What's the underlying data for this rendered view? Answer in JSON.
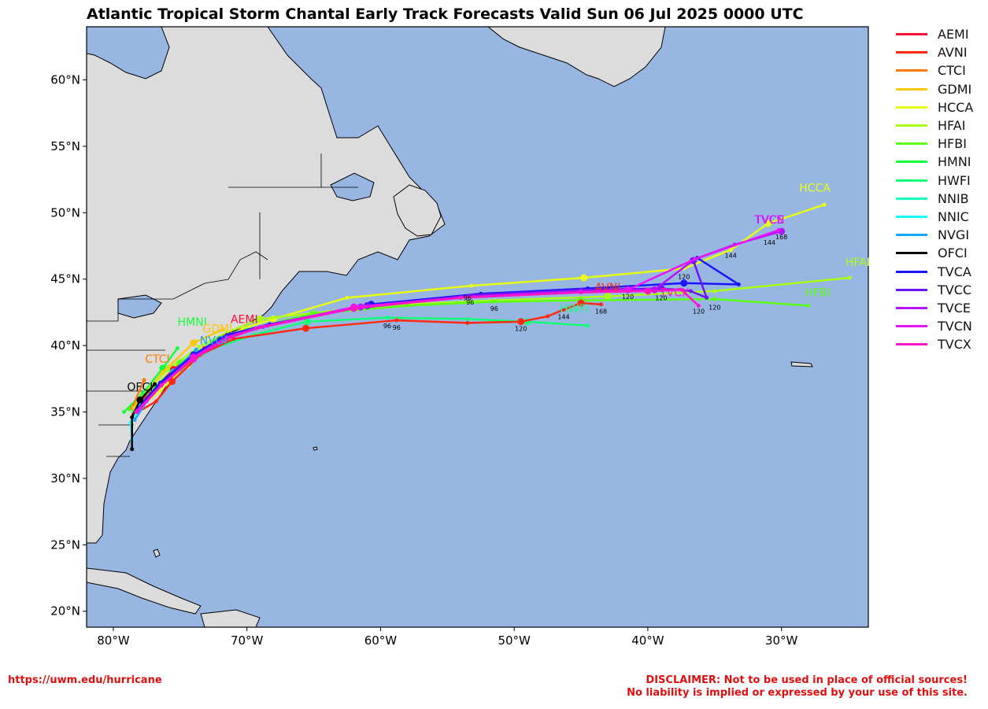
{
  "title": "Atlantic Tropical Storm Chantal Early Track Forecasts Valid Sun 06 Jul 2025 0000 UTC",
  "map": {
    "projection": "equirectangular",
    "lon_range": [
      -82,
      -23.5
    ],
    "lat_range": [
      18.8,
      64
    ],
    "ocean_color": "#98b6e2",
    "land_color": "#dcdcdc",
    "lat_ticks": [
      "60°N",
      "55°N",
      "50°N",
      "45°N",
      "40°N",
      "35°N",
      "30°N",
      "25°N",
      "20°N"
    ],
    "lat_values": [
      60,
      55,
      50,
      45,
      40,
      35,
      30,
      25,
      20
    ],
    "lon_ticks": [
      "80°W",
      "70°W",
      "60°W",
      "50°W",
      "40°W",
      "30°W"
    ],
    "lon_values": [
      -80,
      -70,
      -60,
      -50,
      -40,
      -30
    ]
  },
  "legend": [
    {
      "id": "AEMI",
      "color": "#ff0d35"
    },
    {
      "id": "AVNI",
      "color": "#ff2a10"
    },
    {
      "id": "CTCI",
      "color": "#ff7a0a"
    },
    {
      "id": "GDMI",
      "color": "#ffc70a"
    },
    {
      "id": "HCCA",
      "color": "#e8ff14"
    },
    {
      "id": "HFAI",
      "color": "#a8ff14"
    },
    {
      "id": "HFBI",
      "color": "#5cff14"
    },
    {
      "id": "HMNI",
      "color": "#14ff3c"
    },
    {
      "id": "HWFI",
      "color": "#14ff78"
    },
    {
      "id": "NNIB",
      "color": "#14ffc0"
    },
    {
      "id": "NNIC",
      "color": "#14ffff"
    },
    {
      "id": "NVGI",
      "color": "#14aaff"
    },
    {
      "id": "OFCI",
      "color": "#000000"
    },
    {
      "id": "TVCA",
      "color": "#1a14ff"
    },
    {
      "id": "TVCC",
      "color": "#6a14ff"
    },
    {
      "id": "TVCE",
      "color": "#b414ff"
    },
    {
      "id": "TVCN",
      "color": "#e614ff"
    },
    {
      "id": "TVCX",
      "color": "#ff14c8"
    }
  ],
  "tracks": [
    {
      "id": "HCCA",
      "color": "#e8ff14",
      "label": "HCCA",
      "label_pos": [
        -27.5,
        51.6
      ],
      "points": [
        [
          -78.4,
          35.0
        ],
        [
          -76.5,
          36.6
        ],
        [
          -74.5,
          38.5
        ],
        [
          -72.5,
          40.0
        ],
        [
          -70.3,
          41.3
        ],
        [
          -68,
          42.0
        ],
        [
          -62.5,
          43.6
        ],
        [
          -53.2,
          44.5
        ],
        [
          -44.8,
          45.1
        ],
        [
          -37.3,
          45.8
        ],
        [
          -33.8,
          47.2
        ],
        [
          -31,
          49.2
        ],
        [
          -26.8,
          50.6
        ]
      ],
      "hours": [
        [
          "120",
          -37.3,
          45.0
        ],
        [
          "144",
          -33.8,
          46.6
        ]
      ]
    },
    {
      "id": "HFAI",
      "color": "#a8ff14",
      "label": "HFAI",
      "label_pos": [
        -24.3,
        46.0
      ],
      "points": [
        [
          -78.8,
          35.2
        ],
        [
          -77.5,
          36.6
        ],
        [
          -75.8,
          38.3
        ],
        [
          -73.6,
          39.9
        ],
        [
          -71.5,
          41.0
        ],
        [
          -69,
          42.0
        ],
        [
          -60,
          43.0
        ],
        [
          -51.5,
          43.4
        ],
        [
          -43,
          43.7
        ],
        [
          -35,
          44.1
        ],
        [
          -24.9,
          45.1
        ]
      ],
      "hours": []
    },
    {
      "id": "HFBI",
      "color": "#5cff14",
      "label": "HFBI",
      "label_pos": [
        -27.3,
        43.7
      ],
      "points": [
        [
          -78.8,
          35.2
        ],
        [
          -77,
          36.8
        ],
        [
          -75,
          38.7
        ],
        [
          -72.5,
          40.3
        ],
        [
          -70,
          41.2
        ],
        [
          -65,
          42.4
        ],
        [
          -58,
          43.0
        ],
        [
          -51.5,
          43.3
        ],
        [
          -45,
          43.4
        ],
        [
          -35,
          43.5
        ],
        [
          -28,
          43.0
        ]
      ],
      "hours": [
        [
          "96",
          -51.5,
          42.6
        ],
        [
          "120",
          -35,
          42.7
        ]
      ]
    },
    {
      "id": "HMNI",
      "color": "#14ff3c",
      "label": "HMNI",
      "label_pos": [
        -74.1,
        41.5
      ],
      "points": [
        [
          -79.2,
          35.0
        ],
        [
          -77.8,
          36.4
        ],
        [
          -76.3,
          38.3
        ],
        [
          -75.2,
          39.8
        ]
      ],
      "hours": []
    },
    {
      "id": "HWFI",
      "color": "#14ff78",
      "label": "HWFI",
      "label_pos": [
        -45.5,
        42.5
      ],
      "points": [
        [
          -78.5,
          35.0
        ],
        [
          -77,
          36.5
        ],
        [
          -75,
          38.3
        ],
        [
          -72.5,
          39.8
        ],
        [
          -69.5,
          40.8
        ],
        [
          -65.5,
          41.8
        ],
        [
          -59.5,
          42.1
        ],
        [
          -53.5,
          42.0
        ],
        [
          -49,
          41.8
        ],
        [
          -44.5,
          41.5
        ]
      ],
      "hours": [
        [
          "96",
          -59.5,
          41.3
        ]
      ]
    },
    {
      "id": "AVNI",
      "color": "#ff2a10",
      "label": "AVNI",
      "label_pos": [
        -43,
        44.1
      ],
      "points": [
        [
          -78.5,
          34.8
        ],
        [
          -76.8,
          35.8
        ],
        [
          -75.6,
          37.3
        ],
        [
          -73.5,
          39.3
        ],
        [
          -71,
          40.5
        ],
        [
          -65.6,
          41.3
        ],
        [
          -58.8,
          41.9
        ],
        [
          -53.5,
          41.7
        ],
        [
          -49.5,
          41.8
        ],
        [
          -47.5,
          42.2
        ],
        [
          -46.3,
          42.7
        ],
        [
          -45,
          43.2
        ],
        [
          -43.5,
          43.1
        ]
      ],
      "hours": [
        [
          "96",
          -58.8,
          41.2
        ],
        [
          "120",
          -49.5,
          41.1
        ],
        [
          "144",
          -46.3,
          42.0
        ],
        [
          "168",
          -43.5,
          42.4
        ]
      ]
    },
    {
      "id": "AEMI",
      "color": "#ff0d35",
      "label": "AEMI",
      "label_pos": [
        -70.2,
        41.7
      ],
      "points": [
        [
          -78.6,
          35.3
        ],
        [
          -77.2,
          36.4
        ],
        [
          -75.5,
          38.2
        ],
        [
          -73.2,
          39.8
        ],
        [
          -71,
          40.8
        ]
      ],
      "hours": []
    },
    {
      "id": "CTCI",
      "color": "#ff7a0a",
      "label": "CTCI",
      "label_pos": [
        -76.7,
        38.7
      ],
      "points": [
        [
          -78.6,
          35.3
        ],
        [
          -77.7,
          37.4
        ]
      ],
      "hours": []
    },
    {
      "id": "GDMI",
      "color": "#ffc70a",
      "label": "GDMI",
      "label_pos": [
        -72.2,
        41.0
      ],
      "points": [
        [
          -78.5,
          35.3
        ],
        [
          -76.3,
          38.0
        ],
        [
          -74,
          40.2
        ],
        [
          -71.8,
          41.2
        ]
      ],
      "hours": []
    },
    {
      "id": "NVGI",
      "color": "#14aaff",
      "label": "NVGI",
      "label_pos": [
        -72.5,
        40.1
      ],
      "points": [
        [
          -78.4,
          34.4
        ],
        [
          -77.5,
          35.8
        ],
        [
          -75.5,
          38.0
        ],
        [
          -73.8,
          39.7
        ]
      ],
      "hours": []
    },
    {
      "id": "NNIC",
      "color": "#14ffff",
      "label": "",
      "label_pos": [
        0,
        0
      ],
      "points": [
        [
          -78.6,
          32.9
        ],
        [
          -78.7,
          34.2
        ],
        [
          -77.9,
          35.7
        ],
        [
          -77.1,
          36.3
        ]
      ],
      "hours": []
    },
    {
      "id": "OFCI",
      "color": "#000000",
      "label": "OFCI",
      "label_pos": [
        -78,
        36.6
      ],
      "points": [
        [
          -78.6,
          32.2
        ],
        [
          -78.6,
          34.6
        ],
        [
          -78,
          35.9
        ],
        [
          -76.9,
          37.1
        ]
      ],
      "hours": []
    },
    {
      "id": "TVCA",
      "color": "#1a14ff",
      "label": "",
      "label_pos": [
        0,
        0
      ],
      "points": [
        [
          -78.2,
          35.2
        ],
        [
          -76.5,
          37.2
        ],
        [
          -74,
          39.3
        ],
        [
          -71.5,
          40.8
        ],
        [
          -68.3,
          41.6
        ],
        [
          -60.7,
          43.1
        ],
        [
          -52.5,
          43.9
        ],
        [
          -44.5,
          44.3
        ],
        [
          -37.3,
          44.7
        ],
        [
          -33.2,
          44.6
        ],
        [
          -36.3,
          46.6
        ]
      ],
      "hours": [
        [
          "96",
          -53.5,
          43.4
        ]
      ]
    },
    {
      "id": "TVCC",
      "color": "#6a14ff",
      "label": "",
      "label_pos": [
        0,
        0
      ],
      "points": [
        [
          -78.2,
          35.1
        ],
        [
          -76.4,
          37.1
        ],
        [
          -74,
          39.2
        ],
        [
          -71.5,
          40.7
        ],
        [
          -68.5,
          41.5
        ],
        [
          -61,
          43.0
        ],
        [
          -53,
          43.8
        ],
        [
          -45,
          44.2
        ],
        [
          -39,
          44.3
        ],
        [
          -36.8,
          44.1
        ],
        [
          -35.6,
          43.6
        ],
        [
          -36.6,
          46.4
        ]
      ],
      "hours": [
        [
          "120",
          -39,
          43.4
        ]
      ]
    },
    {
      "id": "TVCE",
      "color": "#b414ff",
      "label": "TVCE",
      "label_pos": [
        -30.9,
        49.2
      ],
      "points": [
        [
          -78.2,
          35.1
        ],
        [
          -76.4,
          37.0
        ],
        [
          -74,
          39.1
        ],
        [
          -71.5,
          40.6
        ],
        [
          -68.8,
          41.4
        ],
        [
          -61.5,
          42.9
        ],
        [
          -53.3,
          43.7
        ],
        [
          -45,
          44.1
        ],
        [
          -39.5,
          44.2
        ],
        [
          -36.5,
          46.5
        ],
        [
          -33.5,
          47.6
        ],
        [
          -30,
          48.6
        ]
      ],
      "hours": [
        [
          "96",
          -53.3,
          43.1
        ],
        [
          "144",
          -30.9,
          47.6
        ],
        [
          "168",
          -30,
          48.0
        ]
      ]
    },
    {
      "id": "TVCN",
      "color": "#e614ff",
      "label": "TVCN",
      "label_pos": [
        -30.9,
        49.2
      ],
      "points": [
        [
          -78.2,
          35.0
        ],
        [
          -76.4,
          37.0
        ],
        [
          -74,
          39.1
        ],
        [
          -71.5,
          40.6
        ],
        [
          -69,
          41.4
        ],
        [
          -62,
          42.9
        ],
        [
          -54,
          43.6
        ],
        [
          -45,
          44.0
        ],
        [
          -41.5,
          44.2
        ],
        [
          -36.5,
          46.5
        ],
        [
          -30.2,
          48.7
        ]
      ],
      "hours": [
        [
          "120",
          -41.5,
          43.5
        ]
      ]
    },
    {
      "id": "TVCX",
      "color": "#ff14c8",
      "label": "TVCX",
      "label_pos": [
        -38,
        43.7
      ],
      "points": [
        [
          -78.3,
          35.0
        ],
        [
          -76.4,
          37.0
        ],
        [
          -74,
          39.0
        ],
        [
          -71.5,
          40.5
        ],
        [
          -69.3,
          41.3
        ],
        [
          -62,
          42.8
        ],
        [
          -54,
          43.6
        ],
        [
          -45,
          44.0
        ],
        [
          -40,
          44.1
        ],
        [
          -37.5,
          44.2
        ],
        [
          -36.2,
          43.0
        ]
      ],
      "hours": [
        [
          "120",
          -36.2,
          42.4
        ]
      ]
    }
  ],
  "footer": {
    "left": "https://uwm.edu/hurricane",
    "right_line1": "DISCLAIMER: Not to be used in place of official sources!",
    "right_line2": "No liability is implied or expressed by your use of this site."
  }
}
